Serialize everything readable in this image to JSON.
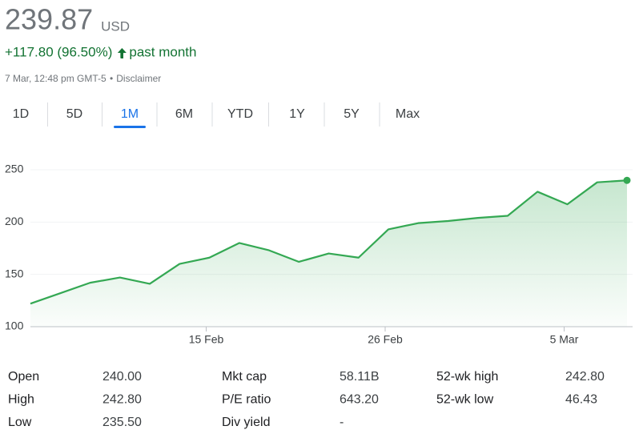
{
  "header": {
    "price": "239.87",
    "currency": "USD",
    "change": "+117.80 (96.50%)",
    "period": "past month",
    "timestamp": "7 Mar, 12:48 pm GMT-5",
    "separator": "•",
    "disclaimer": "Disclaimer"
  },
  "tabs": {
    "items": [
      "1D",
      "5D",
      "1M",
      "6M",
      "YTD",
      "1Y",
      "5Y",
      "Max"
    ],
    "selected": 2
  },
  "chart_data": {
    "type": "line",
    "categories": [
      null,
      null,
      null,
      null,
      null,
      null,
      "15 Feb",
      null,
      null,
      null,
      null,
      null,
      "26 Feb",
      null,
      null,
      null,
      null,
      null,
      "5 Mar",
      null,
      null
    ],
    "values": [
      122.07,
      132,
      142,
      147,
      141,
      160,
      166,
      180,
      173,
      162,
      170,
      166,
      193,
      199,
      201,
      204,
      206,
      229,
      217,
      238,
      239.87
    ],
    "color": "#34a853",
    "ylim": [
      100,
      250
    ],
    "yticks": [
      100,
      150,
      200,
      250
    ],
    "grid": true
  },
  "stats": {
    "rows": [
      [
        [
          "Open",
          "240.00"
        ],
        [
          "Mkt cap",
          "58.11B"
        ],
        [
          "52-wk high",
          "242.80"
        ]
      ],
      [
        [
          "High",
          "242.80"
        ],
        [
          "P/E ratio",
          "643.20"
        ],
        [
          "52-wk low",
          "46.43"
        ]
      ],
      [
        [
          "Low",
          "235.50"
        ],
        [
          "Div yield",
          "-"
        ]
      ]
    ]
  }
}
